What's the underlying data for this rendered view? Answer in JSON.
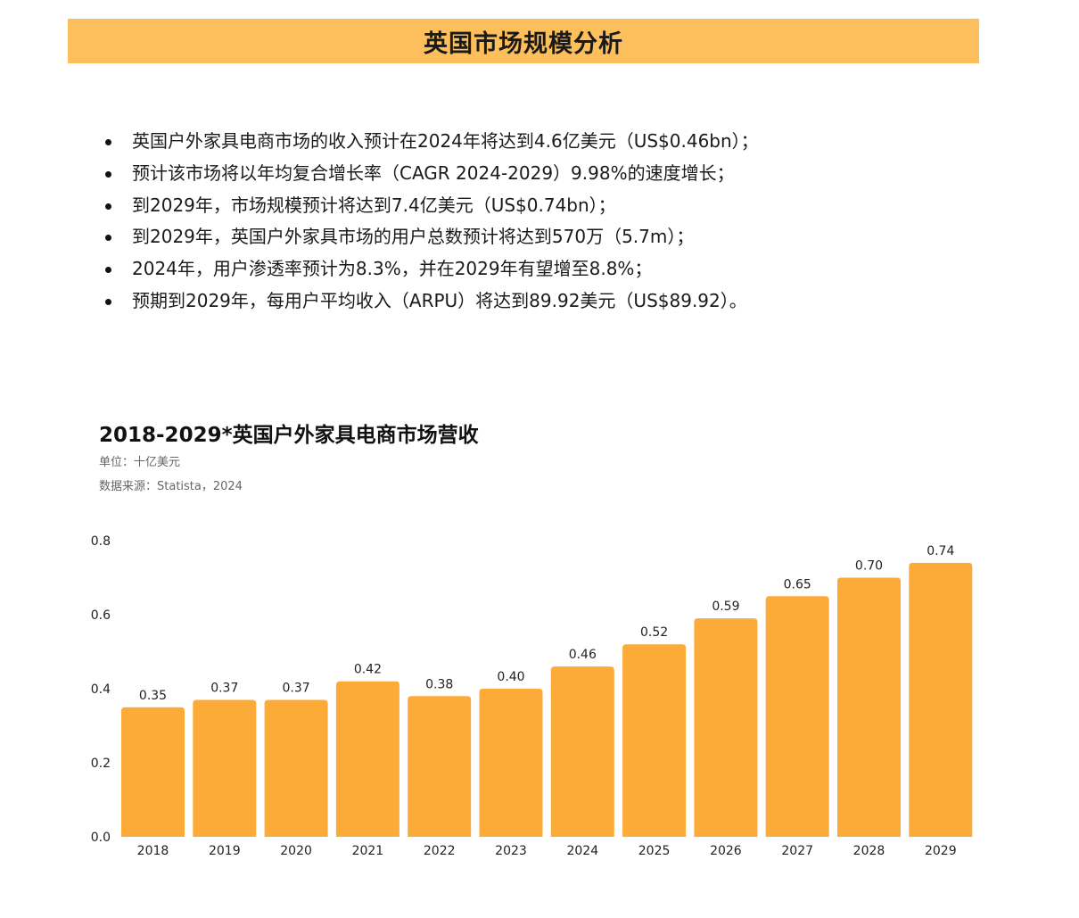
{
  "header": {
    "title": "英国市场规模分析"
  },
  "bullets": [
    "英国户外家具电商市场的收入预计在2024年将达到4.6亿美元（US$0.46bn）；",
    "预计该市场将以年均复合增长率（CAGR 2024-2029）9.98%的速度增长；",
    "到2029年，市场规模预计将达到7.4亿美元（US$0.74bn）；",
    "到2029年，英国户外家具市场的用户总数预计将达到570万（5.7m）；",
    "2024年，用户渗透率预计为8.3%，并在2029年有望增至8.8%；",
    "预期到2029年，每用户平均收入（ARPU）将达到89.92美元（US$89.92）。"
  ],
  "colors": {
    "header_bg": "#fdbe5c",
    "bar": "#fdab38"
  },
  "chart_data": {
    "type": "bar",
    "title": "2018-2029*英国户外家具电商市场营收",
    "unit": "单位：十亿美元",
    "source": "数据来源：Statista，2024",
    "categories": [
      "2018",
      "2019",
      "2020",
      "2021",
      "2022",
      "2023",
      "2024",
      "2025",
      "2026",
      "2027",
      "2028",
      "2029"
    ],
    "values": [
      0.35,
      0.37,
      0.37,
      0.42,
      0.38,
      0.4,
      0.46,
      0.52,
      0.59,
      0.65,
      0.7,
      0.74
    ],
    "value_labels": [
      "0.35",
      "0.37",
      "0.37",
      "0.42",
      "0.38",
      "0.40",
      "0.46",
      "0.52",
      "0.59",
      "0.65",
      "0.70",
      "0.74"
    ],
    "y_ticks": [
      "0.0",
      "0.2",
      "0.4",
      "0.6",
      "0.8"
    ],
    "ylim": [
      0,
      0.8
    ],
    "grid": false,
    "legend": "none"
  }
}
